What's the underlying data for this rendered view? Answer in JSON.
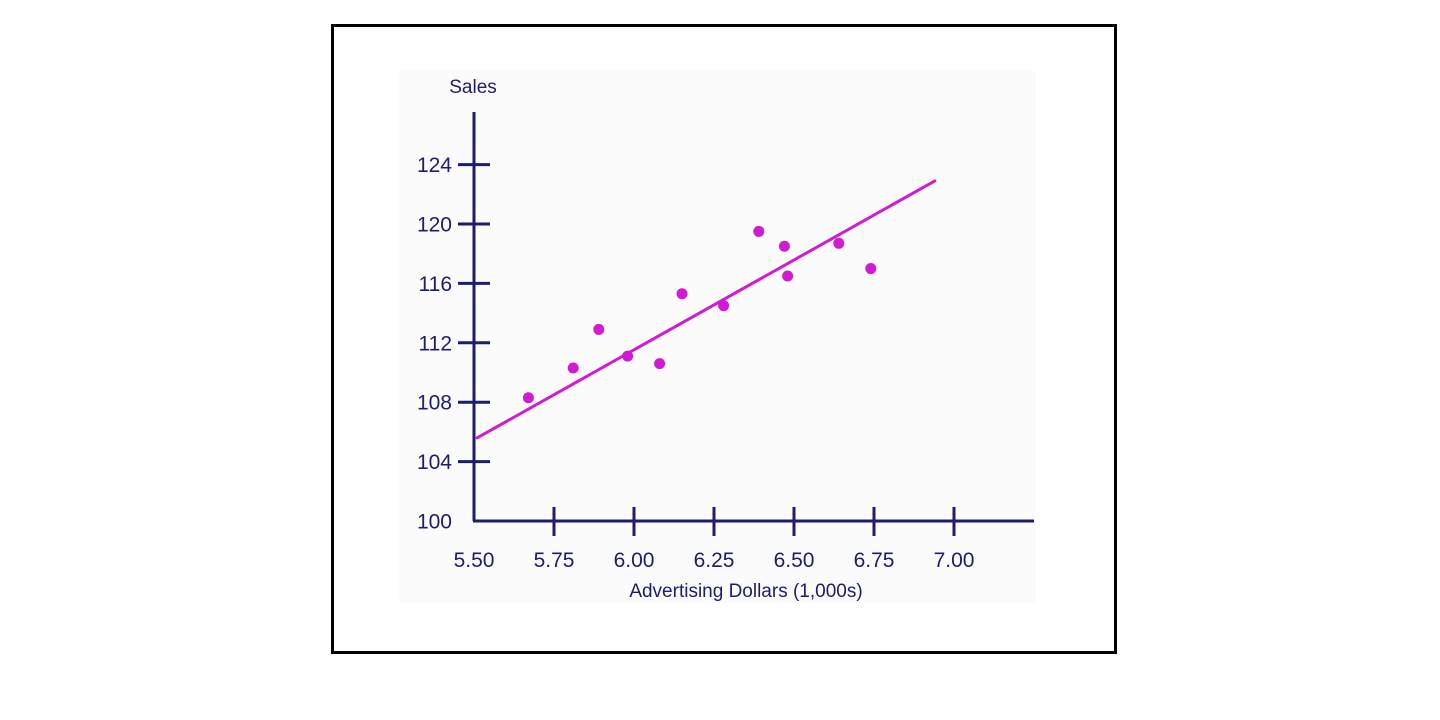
{
  "chart_data": {
    "type": "scatter",
    "title": "",
    "xlabel": "Advertising Dollars (1,000s)",
    "ylabel": "Sales",
    "xlim": [
      5.5,
      7.2
    ],
    "ylim": [
      100,
      127.5
    ],
    "x_ticks": [
      5.5,
      5.75,
      6.0,
      6.25,
      6.5,
      6.75,
      7.0
    ],
    "x_tick_labels": [
      "5.50",
      "5.75",
      "6.00",
      "6.25",
      "6.50",
      "6.75",
      "7.00"
    ],
    "y_ticks": [
      100,
      104,
      108,
      112,
      116,
      120,
      124
    ],
    "y_tick_labels": [
      "100",
      "104",
      "108",
      "112",
      "116",
      "120",
      "124"
    ],
    "grid": false,
    "series": [
      {
        "type": "scatter",
        "x": [
          5.67,
          5.81,
          5.89,
          5.98,
          6.08,
          6.15,
          6.28,
          6.39,
          6.47,
          6.48,
          6.64,
          6.74
        ],
        "y": [
          108.3,
          110.3,
          112.9,
          111.1,
          110.6,
          115.3,
          114.5,
          119.5,
          118.5,
          116.5,
          118.7,
          117.0
        ]
      },
      {
        "type": "line",
        "x": [
          5.51,
          6.94
        ],
        "y": [
          105.6,
          122.9
        ]
      }
    ],
    "colors": {
      "axis": "#1d1d6e",
      "points": "#d21ad2",
      "trend_line": "#d21ad2",
      "plot_background": "#fbfbfb"
    }
  }
}
